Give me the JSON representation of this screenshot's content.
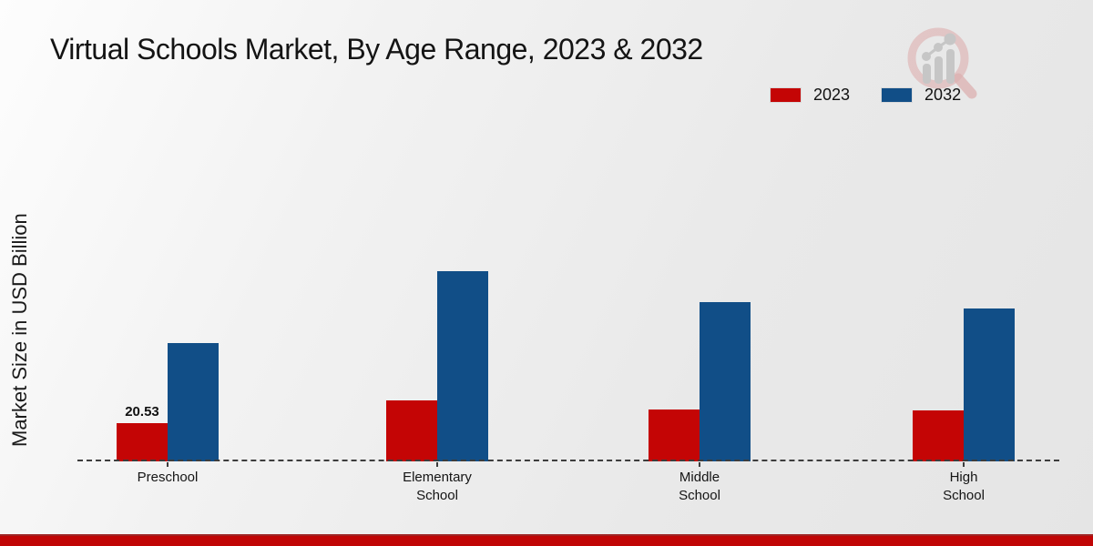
{
  "title": "Virtual Schools Market, By Age Range, 2023 & 2032",
  "y_axis_label": "Market Size in USD Billion",
  "legend": {
    "position": "top-right",
    "items": [
      {
        "label": "2023",
        "color": "#c40505"
      },
      {
        "label": "2032",
        "color": "#114e87"
      }
    ]
  },
  "icons": {
    "watermark": "magnifier-growth-chart-logo"
  },
  "colors": {
    "series_2023": "#c40505",
    "series_2032": "#114e87",
    "footer_bar": "#c00505",
    "axis_line": "#3d3d3d",
    "watermark_ring": "#dfb9b9",
    "watermark_bars": "#c6c6c6"
  },
  "chart_data": {
    "type": "bar",
    "title": "Virtual Schools Market, By Age Range, 2023 & 2032",
    "categories": [
      "Preschool",
      "Elementary School",
      "Middle School",
      "High School"
    ],
    "category_label_lines": [
      [
        "Preschool"
      ],
      [
        "Elementary",
        "School"
      ],
      [
        "Middle",
        "School"
      ],
      [
        "High",
        "School"
      ]
    ],
    "series": [
      {
        "name": "2023",
        "color": "#c40505",
        "values": [
          20.53,
          32.8,
          27.9,
          27.4
        ],
        "data_labels": [
          "20.53",
          "",
          "",
          ""
        ]
      },
      {
        "name": "2032",
        "color": "#114e87",
        "values": [
          63.5,
          102.2,
          85.5,
          82.1
        ],
        "data_labels": [
          "",
          "",
          "",
          ""
        ]
      }
    ],
    "xlabel": "",
    "ylabel": "Market Size in USD Billion",
    "ylim": [
      0,
      110
    ],
    "grid": false,
    "legend_position": "top-right",
    "baseline_style": "dashed"
  }
}
